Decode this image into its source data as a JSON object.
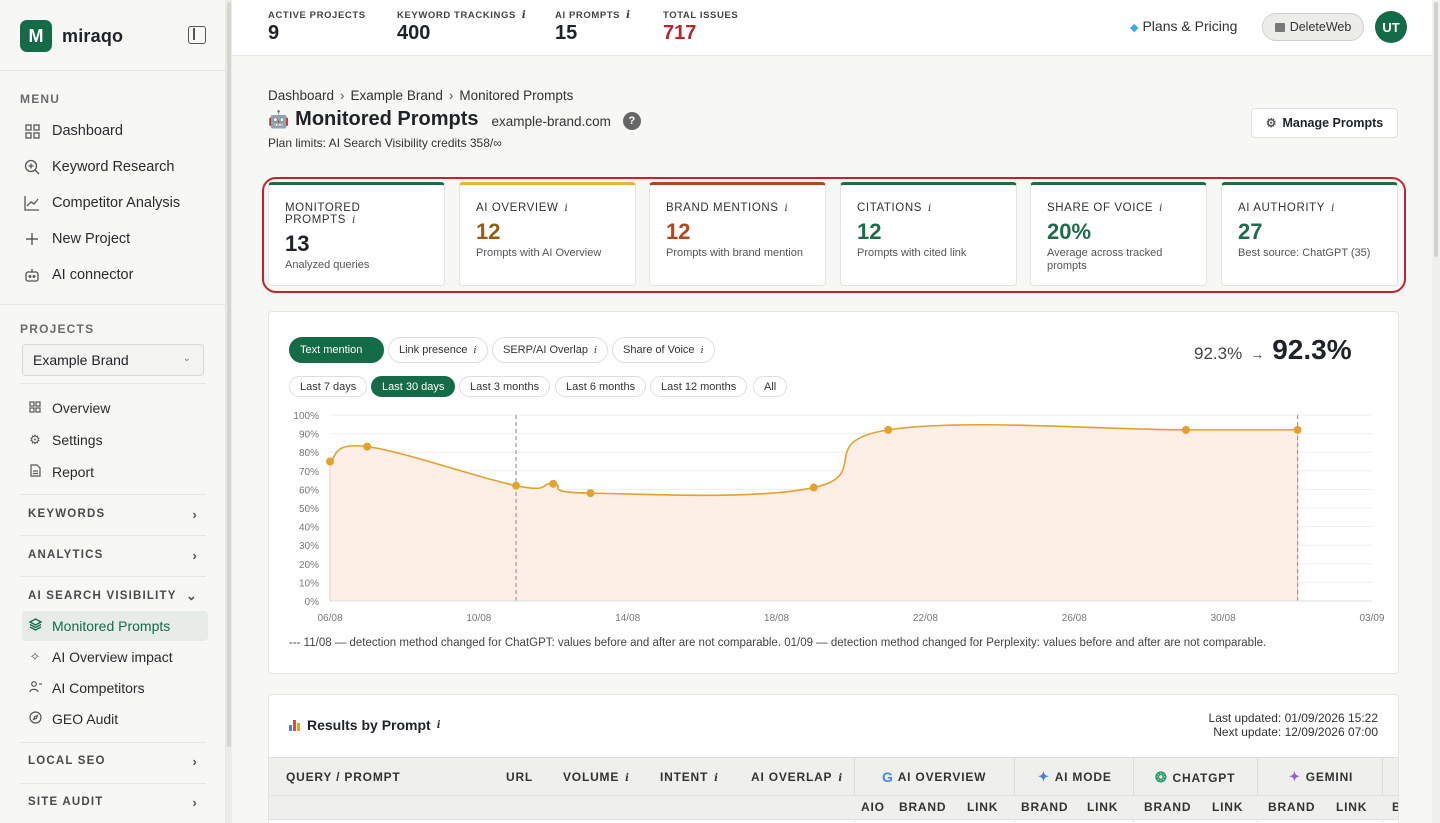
{
  "brand": {
    "logo_letter": "M",
    "name": "miraqo"
  },
  "sidebar": {
    "menu_title": "MENU",
    "menu_items": [
      {
        "label": "Dashboard",
        "icon": "grid-icon"
      },
      {
        "label": "Keyword Research",
        "icon": "search-plus-icon"
      },
      {
        "label": "Competitor Analysis",
        "icon": "line-chart-icon"
      },
      {
        "label": "New Project",
        "icon": "plus-icon"
      },
      {
        "label": "AI connector",
        "icon": "bot-icon"
      }
    ],
    "projects_title": "PROJECTS",
    "project_selected": "Example Brand",
    "project_items": [
      {
        "label": "Overview",
        "icon": "grid-icon"
      },
      {
        "label": "Settings",
        "icon": "gear-icon"
      },
      {
        "label": "Report",
        "icon": "file-icon"
      }
    ],
    "groups": {
      "keywords": "KEYWORDS",
      "analytics": "ANALYTICS",
      "ai_search": "AI SEARCH VISIBILITY",
      "local_seo": "LOCAL SEO",
      "site_audit": "SITE AUDIT"
    },
    "ai_items": [
      {
        "label": "Monitored Prompts",
        "icon": "layers-icon",
        "active": true
      },
      {
        "label": "AI Overview impact",
        "icon": "sparkle-icon"
      },
      {
        "label": "AI Competitors",
        "icon": "users-icon"
      },
      {
        "label": "GEO Audit",
        "icon": "compass-icon"
      }
    ]
  },
  "topbar": {
    "stats": [
      {
        "label": "ACTIVE PROJECTS",
        "value": "9",
        "info": ""
      },
      {
        "label": "KEYWORD TRACKINGS",
        "value": "400",
        "info": "i"
      },
      {
        "label": "AI PROMPTS",
        "value": "15",
        "info": "i"
      },
      {
        "label": "TOTAL ISSUES",
        "value": "717",
        "info": ""
      }
    ],
    "plans_label": "Plans & Pricing",
    "workspace_label": "DeleteWeb",
    "avatar_initials": "UT"
  },
  "page": {
    "breadcrumb": [
      "Dashboard",
      "Example Brand",
      "Monitored Prompts"
    ],
    "title_emoji": "🤖",
    "title": "Monitored Prompts",
    "domain": "example-brand.com",
    "help": "?",
    "plan_limits": "Plan limits: AI Search Visibility credits 358/∞",
    "manage_button": "Manage Prompts"
  },
  "kpis": [
    {
      "label": "MONITORED PROMPTS",
      "value": "13",
      "sub": "Analyzed queries",
      "accent": "#1d6b4a",
      "value_color": "#1f2328"
    },
    {
      "label": "AI OVERVIEW",
      "value": "12",
      "sub": "Prompts with AI Overview",
      "accent": "#e8b23a",
      "value_color": "#9a5a12"
    },
    {
      "label": "BRAND MENTIONS",
      "value": "12",
      "sub": "Prompts with brand mention",
      "accent": "#b4461b",
      "value_color": "#b4461b"
    },
    {
      "label": "CITATIONS",
      "value": "12",
      "sub": "Prompts with cited link",
      "accent": "#1d6b4a",
      "value_color": "#1d6b4a"
    },
    {
      "label": "SHARE OF VOICE",
      "value": "20%",
      "sub": "Average across tracked prompts",
      "accent": "#1d6b4a",
      "value_color": "#1d6b4a"
    },
    {
      "label": "AI AUTHORITY",
      "value": "27",
      "sub": "Best source: ChatGPT (35)",
      "accent": "#1d6b4a",
      "value_color": "#1d6b4a"
    }
  ],
  "chart_controls": {
    "metric_tabs": [
      {
        "label": "Text mention",
        "active": true,
        "info": ""
      },
      {
        "label": "Link presence",
        "active": false,
        "info": "i"
      },
      {
        "label": "SERP/AI Overlap",
        "active": false,
        "info": "i"
      },
      {
        "label": "Share of Voice",
        "active": false,
        "info": "i"
      }
    ],
    "ranges": [
      {
        "label": "Last 7 days",
        "active": false
      },
      {
        "label": "Last 30 days",
        "active": true
      },
      {
        "label": "Last 3 months",
        "active": false
      },
      {
        "label": "Last 6 months",
        "active": false
      },
      {
        "label": "Last 12 months",
        "active": false
      },
      {
        "label": "All",
        "active": false
      }
    ],
    "delta_from": "92.3%",
    "delta_arrow": "→",
    "delta_to": "92.3%"
  },
  "chart_data": {
    "type": "area",
    "x_labels": [
      "06/08",
      "10/08",
      "14/08",
      "18/08",
      "22/08",
      "26/08",
      "30/08",
      "03/09"
    ],
    "y_ticks": [
      "100%",
      "90%",
      "80%",
      "70%",
      "60%",
      "50%",
      "40%",
      "30%",
      "20%",
      "10%",
      "0%"
    ],
    "ylim": [
      0,
      100
    ],
    "series": [
      {
        "points": [
          {
            "x": "06/08",
            "y": 75
          },
          {
            "x": "07/08",
            "y": 83
          },
          {
            "x": "11/08",
            "y": 62
          },
          {
            "x": "12/08",
            "y": 63
          },
          {
            "x": "13/08",
            "y": 58
          },
          {
            "x": "19/08",
            "y": 61
          },
          {
            "x": "21/08",
            "y": 92
          },
          {
            "x": "29/08",
            "y": 92
          },
          {
            "x": "01/09",
            "y": 92
          }
        ],
        "color": "#e3a12f",
        "fill": "#fdeee6"
      }
    ],
    "markers": [
      "11/08",
      "01/09"
    ],
    "grid": true
  },
  "chart_note": "--- 11/08 — detection method changed for ChatGPT: values before and after are not comparable. 01/09 — detection method changed for Perplexity: values before and after are not comparable.",
  "results": {
    "title": "Results by Prompt",
    "last_updated": "Last updated: 01/09/2026 15:22",
    "next_update": "Next update: 12/09/2026 07:00",
    "columns": [
      "QUERY / PROMPT",
      "URL",
      "VOLUME",
      "INTENT",
      "AI OVERLAP"
    ],
    "engines": [
      "AI OVERVIEW",
      "AI MODE",
      "CHATGPT",
      "GEMINI"
    ],
    "sub_columns": [
      "AIO",
      "BRAND",
      "LINK",
      "BRAND",
      "LINK",
      "BRAND",
      "LINK",
      "BRAND",
      "LINK",
      "B"
    ],
    "info": "i"
  }
}
